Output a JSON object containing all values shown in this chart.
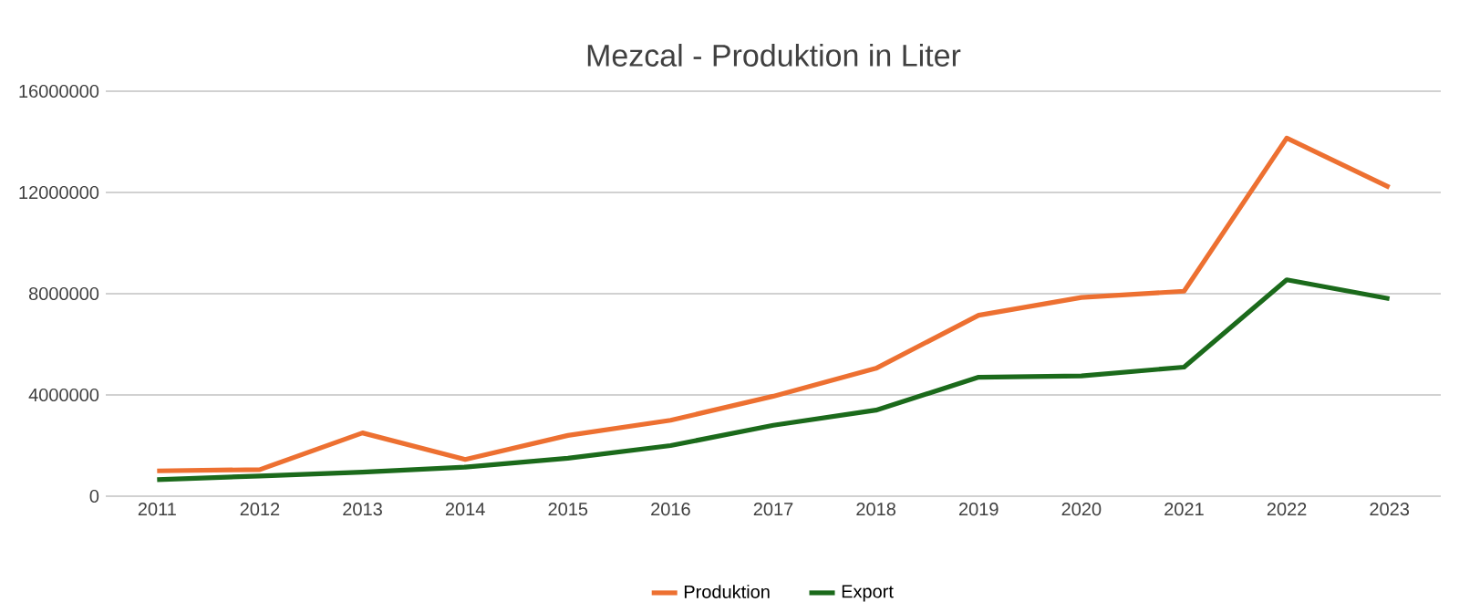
{
  "chart_data": {
    "type": "line",
    "title": "Mezcal - Produktion in Liter",
    "categories": [
      "2011",
      "2012",
      "2013",
      "2014",
      "2015",
      "2016",
      "2017",
      "2018",
      "2019",
      "2020",
      "2021",
      "2022",
      "2023"
    ],
    "series": [
      {
        "name": "Produktion",
        "color": "#ed7031",
        "values": [
          1000000,
          1050000,
          2500000,
          1450000,
          2400000,
          3000000,
          3950000,
          5050000,
          7150000,
          7850000,
          8100000,
          14150000,
          12200000
        ]
      },
      {
        "name": "Export",
        "color": "#1b6a1b",
        "values": [
          650000,
          800000,
          950000,
          1150000,
          1500000,
          2000000,
          2800000,
          3400000,
          4700000,
          4750000,
          5100000,
          8550000,
          7800000
        ]
      }
    ],
    "ylim": [
      0,
      16000000
    ],
    "yticks": [
      0,
      4000000,
      8000000,
      12000000,
      16000000
    ],
    "grid": "y",
    "legend": "bottom",
    "marker": "none",
    "line_style": "solid"
  }
}
